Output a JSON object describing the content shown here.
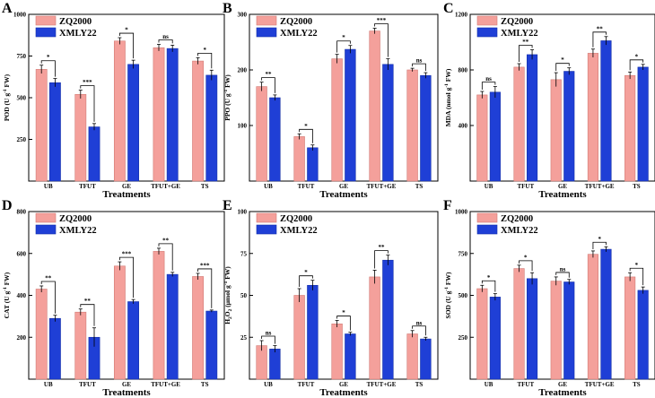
{
  "figure_colors": {
    "series_a": "#f4a09b",
    "series_b": "#1f3fd6",
    "axis": "#000000"
  },
  "chart_data": [
    {
      "panel": "A",
      "type": "bar",
      "ylabel": "POD (U g-1 FW)",
      "ylabel_parts": [
        "POD (U g",
        "-1",
        " FW)"
      ],
      "xlabel": "Treatments",
      "ylim": [
        0,
        1000
      ],
      "yticks": [
        "250",
        "500",
        "750",
        "1000"
      ],
      "ytick_values": [
        250,
        500,
        750,
        1000
      ],
      "categories": [
        "UB",
        "TFUT",
        "GE",
        "TFUT+GE",
        "TS"
      ],
      "legend": [
        "ZQ2000",
        "XMLY22"
      ],
      "series": [
        {
          "name": "ZQ2000",
          "values": [
            670,
            520,
            840,
            800,
            720
          ],
          "errors": [
            25,
            25,
            20,
            20,
            20
          ]
        },
        {
          "name": "XMLY22",
          "values": [
            590,
            325,
            700,
            795,
            635
          ],
          "errors": [
            25,
            20,
            25,
            20,
            30
          ]
        }
      ],
      "significance": [
        "*",
        "***",
        "*",
        "ns",
        "*"
      ]
    },
    {
      "panel": "B",
      "type": "bar",
      "ylabel": "PPO (U g-1 FW)",
      "ylabel_parts": [
        "PPO (U g",
        "-1",
        " FW)"
      ],
      "xlabel": "Treatments",
      "ylim": [
        0,
        300
      ],
      "yticks": [
        "100",
        "200",
        "300"
      ],
      "ytick_values": [
        100,
        200,
        300
      ],
      "categories": [
        "UB",
        "TFUT",
        "GE",
        "TFUT+GE",
        "TS"
      ],
      "legend": [
        "ZQ2000",
        "XMLY22"
      ],
      "series": [
        {
          "name": "ZQ2000",
          "values": [
            170,
            80,
            220,
            270,
            200
          ],
          "errors": [
            8,
            5,
            8,
            5,
            3
          ]
        },
        {
          "name": "XMLY22",
          "values": [
            150,
            60,
            237,
            210,
            190
          ],
          "errors": [
            5,
            5,
            7,
            10,
            5
          ]
        }
      ],
      "significance": [
        "**",
        "*",
        "*",
        "***",
        "ns"
      ]
    },
    {
      "panel": "C",
      "type": "bar",
      "ylabel": "MDA (nmol g-1 FW)",
      "ylabel_parts": [
        "MDA (nmol g",
        "-1",
        " FW)"
      ],
      "xlabel": "Treatments",
      "ylim": [
        0,
        1200
      ],
      "yticks": [
        "400",
        "800",
        "1200"
      ],
      "ytick_values": [
        400,
        800,
        1200
      ],
      "categories": [
        "UB",
        "TFUT",
        "GE",
        "TFUT+GE",
        "TS"
      ],
      "legend": [
        "ZQ2000",
        "XMLY22"
      ],
      "series": [
        {
          "name": "ZQ2000",
          "values": [
            620,
            820,
            730,
            920,
            760
          ],
          "errors": [
            25,
            25,
            50,
            30,
            25
          ]
        },
        {
          "name": "XMLY22",
          "values": [
            640,
            910,
            790,
            1010,
            820
          ],
          "errors": [
            40,
            35,
            25,
            30,
            20
          ]
        }
      ],
      "significance": [
        "ns",
        "**",
        "*",
        "**",
        "*"
      ]
    },
    {
      "panel": "D",
      "type": "bar",
      "ylabel": "CAT (U g-1 FW)",
      "ylabel_parts": [
        "CAT (U g",
        "-1",
        " FW)"
      ],
      "xlabel": "Treatments",
      "ylim": [
        0,
        800
      ],
      "yticks": [
        "200",
        "400",
        "600",
        "800"
      ],
      "ytick_values": [
        200,
        400,
        600,
        800
      ],
      "categories": [
        "UB",
        "TFUT",
        "GE",
        "TFUT+GE",
        "TS"
      ],
      "legend": [
        "ZQ2000",
        "XMLY22"
      ],
      "series": [
        {
          "name": "ZQ2000",
          "values": [
            430,
            320,
            540,
            610,
            490
          ],
          "errors": [
            15,
            15,
            20,
            15,
            15
          ]
        },
        {
          "name": "XMLY22",
          "values": [
            290,
            200,
            370,
            500,
            325
          ],
          "errors": [
            15,
            45,
            10,
            10,
            5
          ]
        }
      ],
      "significance": [
        "**",
        "**",
        "***",
        "**",
        "***"
      ]
    },
    {
      "panel": "E",
      "type": "bar",
      "ylabel": "H2O2 (μmol g-1 FW)",
      "ylabel_parts": [
        "H",
        "2",
        "O",
        "2",
        " (μmol g",
        "-1",
        " FW)"
      ],
      "xlabel": "Treatments",
      "ylim": [
        0,
        100
      ],
      "yticks": [
        "25",
        "50",
        "75",
        "100"
      ],
      "ytick_values": [
        25,
        50,
        75,
        100
      ],
      "categories": [
        "UB",
        "TFUT",
        "GE",
        "TFUT+GE",
        "TS"
      ],
      "legend": [
        "ZQ2000",
        "XMLY22"
      ],
      "series": [
        {
          "name": "ZQ2000",
          "values": [
            20,
            50,
            33,
            61,
            27
          ],
          "errors": [
            3,
            4,
            2,
            4,
            2
          ]
        },
        {
          "name": "XMLY22",
          "values": [
            18,
            56,
            27,
            71,
            24
          ],
          "errors": [
            2,
            3,
            1,
            3,
            1
          ]
        }
      ],
      "significance": [
        "ns",
        "*",
        "*",
        "**",
        "ns"
      ]
    },
    {
      "panel": "F",
      "type": "bar",
      "ylabel": "SOD (U g-1 FW)",
      "ylabel_parts": [
        "SOD (U g",
        "-1",
        " FW)"
      ],
      "xlabel": "Treatments",
      "ylim": [
        0,
        1000
      ],
      "yticks": [
        "250",
        "500",
        "750",
        "1000"
      ],
      "ytick_values": [
        250,
        500,
        750,
        1000
      ],
      "categories": [
        "UB",
        "TFUT",
        "GE",
        "TFUT+GE",
        "TS"
      ],
      "legend": [
        "ZQ2000",
        "XMLY22"
      ],
      "series": [
        {
          "name": "ZQ2000",
          "values": [
            540,
            660,
            585,
            745,
            610
          ],
          "errors": [
            20,
            20,
            25,
            20,
            25
          ]
        },
        {
          "name": "XMLY22",
          "values": [
            490,
            600,
            580,
            775,
            530
          ],
          "errors": [
            20,
            35,
            15,
            15,
            20
          ]
        }
      ],
      "significance": [
        "*",
        "*",
        "ns",
        "*",
        "*"
      ]
    }
  ]
}
